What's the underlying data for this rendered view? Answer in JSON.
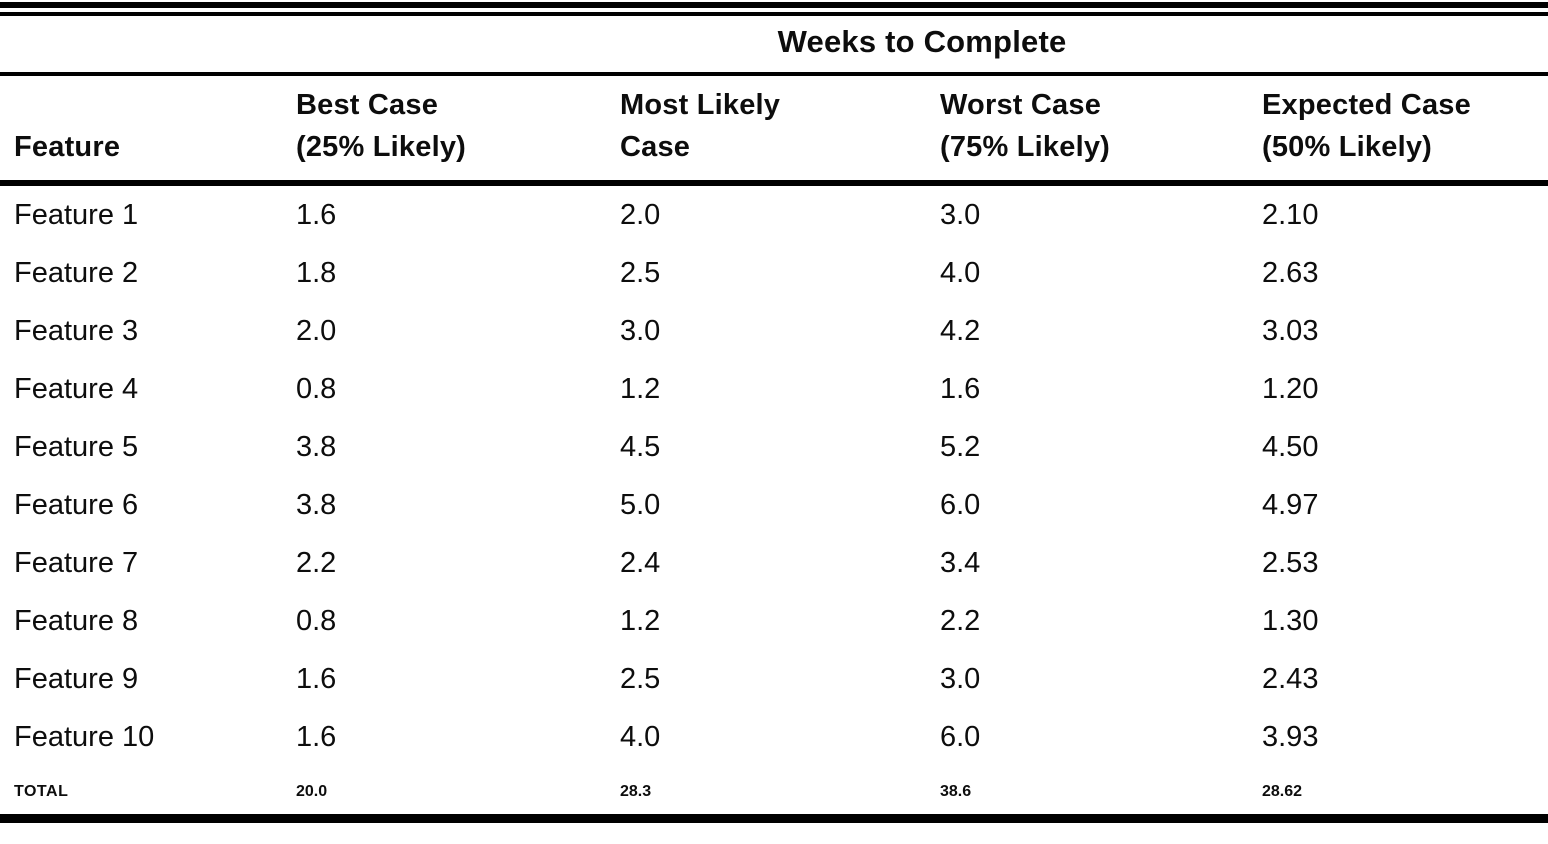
{
  "table": {
    "spanning_header": "Weeks to Complete",
    "columns": [
      {
        "line1": "",
        "line2": "Feature"
      },
      {
        "line1": "Best Case",
        "line2": "(25% Likely)"
      },
      {
        "line1": "Most Likely",
        "line2": "Case"
      },
      {
        "line1": "Worst Case",
        "line2": "(75% Likely)"
      },
      {
        "line1": "Expected Case",
        "line2": "(50% Likely)"
      }
    ],
    "rows": [
      {
        "feature": "Feature 1",
        "best_case": "1.6",
        "most_likely": "2.0",
        "worst_case": "3.0",
        "expected_case": "2.10"
      },
      {
        "feature": "Feature 2",
        "best_case": "1.8",
        "most_likely": "2.5",
        "worst_case": "4.0",
        "expected_case": "2.63"
      },
      {
        "feature": "Feature 3",
        "best_case": "2.0",
        "most_likely": "3.0",
        "worst_case": "4.2",
        "expected_case": "3.03"
      },
      {
        "feature": "Feature 4",
        "best_case": "0.8",
        "most_likely": "1.2",
        "worst_case": "1.6",
        "expected_case": "1.20"
      },
      {
        "feature": "Feature 5",
        "best_case": "3.8",
        "most_likely": "4.5",
        "worst_case": "5.2",
        "expected_case": "4.50"
      },
      {
        "feature": "Feature 6",
        "best_case": "3.8",
        "most_likely": "5.0",
        "worst_case": "6.0",
        "expected_case": "4.97"
      },
      {
        "feature": "Feature 7",
        "best_case": "2.2",
        "most_likely": "2.4",
        "worst_case": "3.4",
        "expected_case": "2.53"
      },
      {
        "feature": "Feature 8",
        "best_case": "0.8",
        "most_likely": "1.2",
        "worst_case": "2.2",
        "expected_case": "1.30"
      },
      {
        "feature": "Feature 9",
        "best_case": "1.6",
        "most_likely": "2.5",
        "worst_case": "3.0",
        "expected_case": "2.43"
      },
      {
        "feature": "Feature 10",
        "best_case": "1.6",
        "most_likely": "4.0",
        "worst_case": "6.0",
        "expected_case": "3.93"
      }
    ],
    "total": {
      "label": "TOTAL",
      "best_case": "20.0",
      "most_likely": "28.3",
      "worst_case": "38.6",
      "expected_case": "28.62"
    }
  },
  "colors": {
    "ink": "#000000",
    "paper": "#ffffff"
  }
}
